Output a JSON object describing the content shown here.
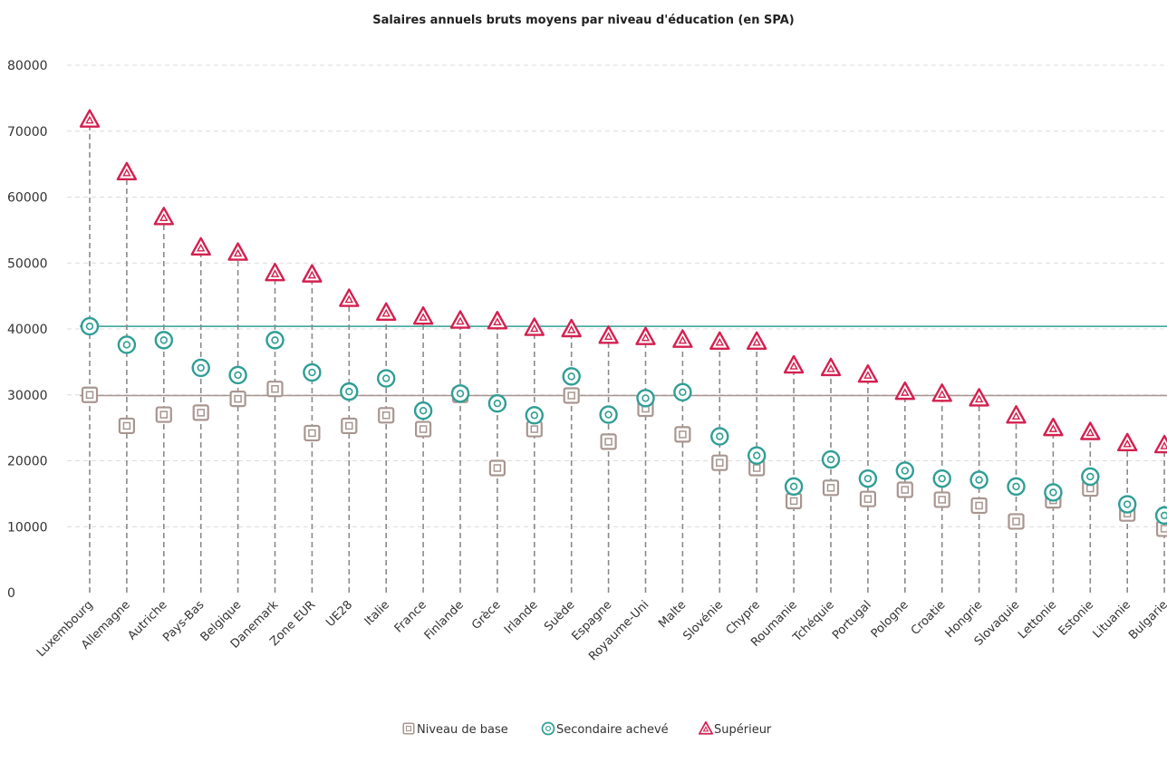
{
  "chart_data": {
    "type": "scatter",
    "title": "Salaires annuels bruts moyens par niveau d'éducation (en SPA)",
    "xlabel": "",
    "ylabel": "",
    "ylim": [
      0,
      80000
    ],
    "yticks": [
      0,
      10000,
      20000,
      30000,
      40000,
      50000,
      60000,
      70000,
      80000
    ],
    "grid": true,
    "legend_position": "bottom-center",
    "categories": [
      "Luxembourg",
      "Allemagne",
      "Autriche",
      "Pays-Bas",
      "Belgique",
      "Danemark",
      "Zone EUR",
      "UE28",
      "Italie",
      "France",
      "Finlande",
      "Grèce",
      "Irlande",
      "Suède",
      "Espagne",
      "Royaume-Uni",
      "Malte",
      "Slovénie",
      "Chypre",
      "Roumanie",
      "Tchéquie",
      "Portugal",
      "Pologne",
      "Croatie",
      "Hongrie",
      "Slovaquie",
      "Lettonie",
      "Estonie",
      "Lituanie",
      "Bulgarie"
    ],
    "series": [
      {
        "name": "Niveau de base",
        "color": "#a89690",
        "marker": "square",
        "values": [
          30000,
          25300,
          27000,
          27300,
          29400,
          30900,
          24200,
          25300,
          26900,
          24800,
          30000,
          18900,
          24800,
          29900,
          22900,
          27900,
          24000,
          19700,
          18900,
          13900,
          15900,
          14200,
          15600,
          14100,
          13200,
          10800,
          14000,
          15800,
          12000,
          9700
        ]
      },
      {
        "name": "Secondaire achevé",
        "color": "#2f9e95",
        "marker": "circle",
        "values": [
          40400,
          37600,
          38300,
          34100,
          33000,
          38300,
          33400,
          30500,
          32500,
          27600,
          30200,
          28700,
          26900,
          32800,
          27000,
          29500,
          30400,
          23700,
          20800,
          16100,
          20200,
          17300,
          18500,
          17300,
          17100,
          16100,
          15200,
          17600,
          13400,
          11700
        ]
      },
      {
        "name": "Supérieur",
        "color": "#d4204f",
        "marker": "triangle",
        "values": [
          71800,
          63800,
          57000,
          52400,
          51600,
          48500,
          48300,
          44600,
          42500,
          41900,
          41300,
          41200,
          40200,
          40000,
          39000,
          38800,
          38400,
          38100,
          38100,
          34500,
          34100,
          33100,
          30500,
          30200,
          29500,
          26900,
          25000,
          24400,
          22700,
          22400
        ]
      }
    ],
    "reference_lines": [
      {
        "value": 40400,
        "color": "#2f9e95"
      },
      {
        "value": 29900,
        "color": "#a89690"
      }
    ]
  }
}
